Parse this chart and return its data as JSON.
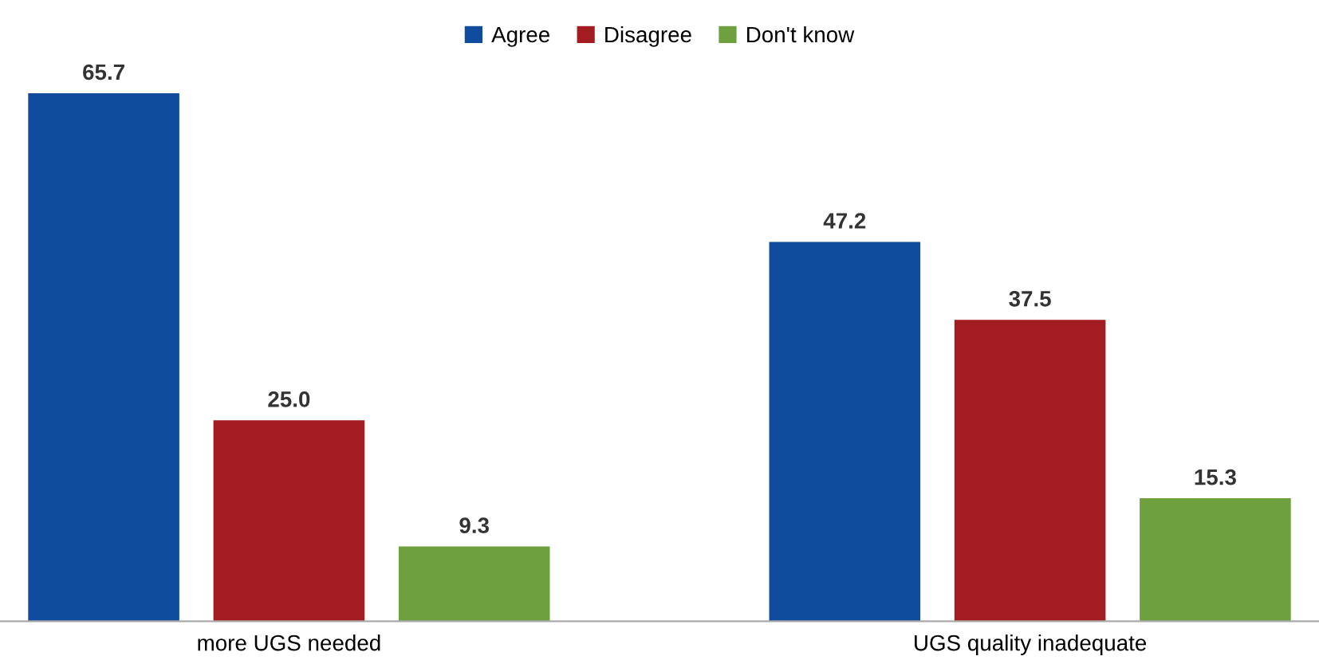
{
  "chart_data": {
    "type": "bar",
    "categories": [
      "more UGS needed",
      "UGS quality inadequate"
    ],
    "series": [
      {
        "name": "Agree",
        "color": "#0f4c9e",
        "values": [
          65.7,
          47.2
        ],
        "value_labels": [
          "65.7",
          "47.2"
        ]
      },
      {
        "name": "Disagree",
        "color": "#a31c22",
        "values": [
          25.0,
          37.5
        ],
        "value_labels": [
          "25.0",
          "37.5"
        ]
      },
      {
        "name": "Don't know",
        "color": "#6fa040",
        "values": [
          9.3,
          15.3
        ],
        "value_labels": [
          "9.3",
          "15.3"
        ]
      }
    ],
    "legend": "top"
  }
}
